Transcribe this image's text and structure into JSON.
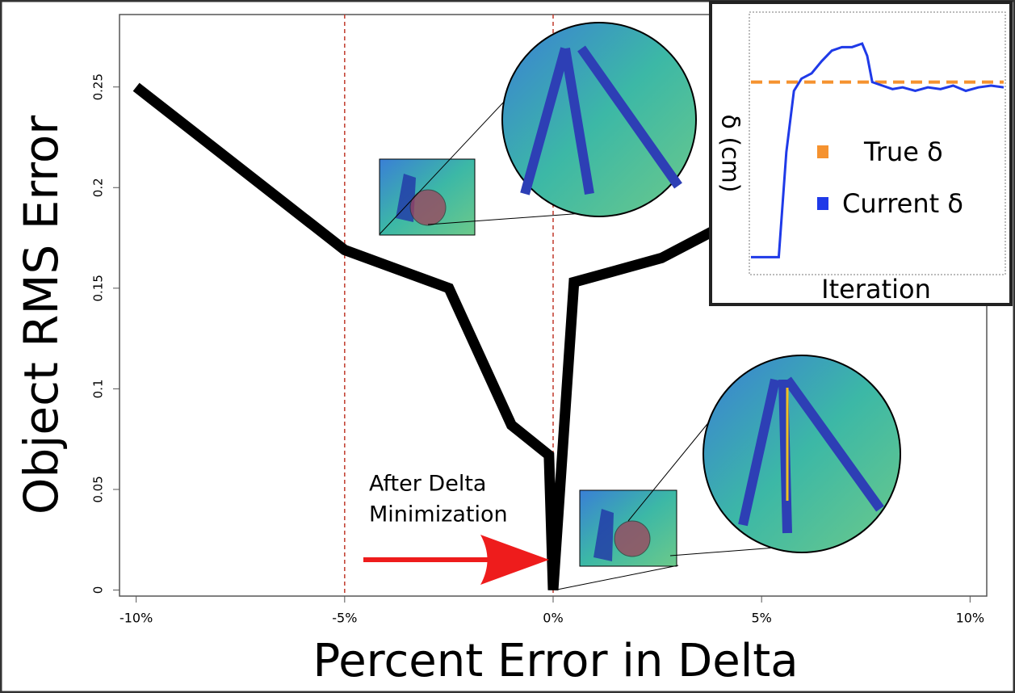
{
  "chart_data": [
    {
      "type": "line",
      "xlabel": "Percent Error in Delta",
      "ylabel": "Object RMS Error",
      "x": [
        -10,
        -5,
        -2.5,
        -1.0,
        -0.1,
        0,
        0.5,
        2.6,
        3.8
      ],
      "values": [
        0.25,
        0.169,
        0.15,
        0.082,
        0.067,
        0,
        0.153,
        0.165,
        0.178
      ],
      "color": "#000000",
      "xlim": [
        -10.4,
        10.4
      ],
      "ylim": [
        -0.003,
        0.286
      ],
      "xticks": [
        {
          "value": -10,
          "label": "-10%"
        },
        {
          "value": -5,
          "label": "-5%"
        },
        {
          "value": 0,
          "label": "0%"
        },
        {
          "value": 5,
          "label": "5%"
        },
        {
          "value": 10,
          "label": "10%"
        }
      ],
      "yticks": [
        0,
        0.05,
        0.1,
        0.15,
        0.2,
        0.25
      ],
      "vlines": [
        -5,
        0
      ],
      "vline_color": "#c0392b",
      "annotation": [
        "After Delta",
        "Minimization"
      ],
      "annotation_color": "#ee1c1c"
    },
    {
      "type": "line",
      "xlabel": "Iteration",
      "ylabel": "δ (cm)",
      "x": [
        0,
        11,
        14,
        17,
        20,
        24,
        28,
        32,
        36,
        40,
        44,
        46,
        48,
        52,
        56,
        60,
        65,
        70,
        75,
        80,
        85,
        90,
        95,
        100
      ],
      "xlim": [
        0,
        100
      ],
      "ylim": [
        -0.1,
        1.4
      ],
      "series": [
        {
          "name": "True δ",
          "color": "#f5922f",
          "dashed": true,
          "values": [
            1,
            1,
            1,
            1,
            1,
            1,
            1,
            1,
            1,
            1,
            1,
            1,
            1,
            1,
            1,
            1,
            1,
            1,
            1,
            1,
            1,
            1,
            1,
            1
          ]
        },
        {
          "name": "Current δ",
          "color": "#1f3ae8",
          "dashed": false,
          "values": [
            0,
            0,
            0.6,
            0.95,
            1.02,
            1.05,
            1.12,
            1.18,
            1.2,
            1.2,
            1.22,
            1.15,
            1.0,
            0.98,
            0.96,
            0.97,
            0.95,
            0.97,
            0.96,
            0.98,
            0.95,
            0.97,
            0.98,
            0.97
          ]
        }
      ]
    }
  ]
}
